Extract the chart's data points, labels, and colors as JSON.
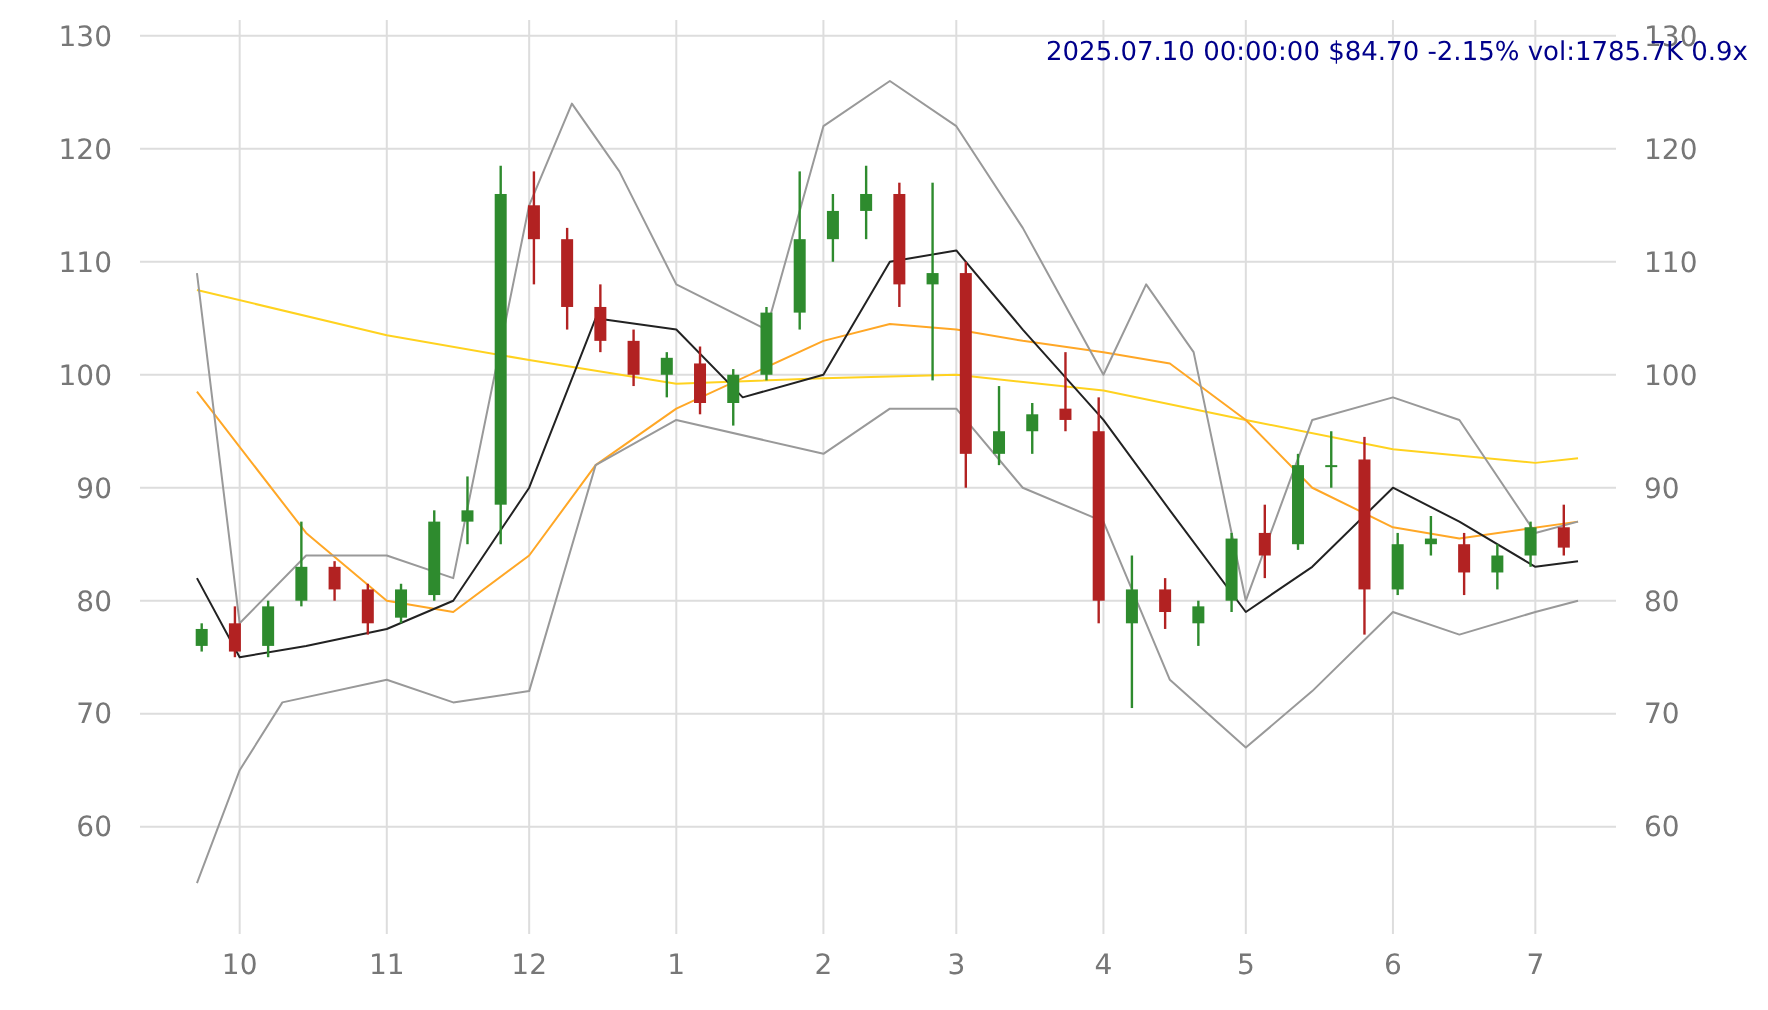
{
  "chart_data": {
    "type": "candlestick",
    "title": "2025.07.10 00:00:00 $84.70 -2.15% vol:1785.7K 0.9x",
    "x": [
      "2024-09-23",
      "2024-09-30",
      "2024-10-07",
      "2024-10-14",
      "2024-10-21",
      "2024-10-28",
      "2024-11-04",
      "2024-11-11",
      "2024-11-18",
      "2024-11-25",
      "2024-12-02",
      "2024-12-09",
      "2024-12-16",
      "2024-12-23",
      "2024-12-30",
      "2025-01-06",
      "2025-01-13",
      "2025-01-20",
      "2025-01-27",
      "2025-02-03",
      "2025-02-10",
      "2025-02-17",
      "2025-02-24",
      "2025-03-03",
      "2025-03-10",
      "2025-03-17",
      "2025-03-24",
      "2025-03-31",
      "2025-04-07",
      "2025-04-14",
      "2025-04-21",
      "2025-04-28",
      "2025-05-05",
      "2025-05-12",
      "2025-05-19",
      "2025-05-26",
      "2025-06-02",
      "2025-06-09",
      "2025-06-16",
      "2025-06-23",
      "2025-06-30",
      "2025-07-07"
    ],
    "ohlc": [
      [
        76,
        78,
        75.5,
        77.5
      ],
      [
        78,
        79.5,
        75,
        75.5
      ],
      [
        76,
        80,
        75,
        79.5
      ],
      [
        80,
        87,
        79.5,
        83
      ],
      [
        83,
        83.5,
        80,
        81
      ],
      [
        81,
        81.5,
        77,
        78
      ],
      [
        78.5,
        81.5,
        78,
        81
      ],
      [
        80.5,
        88,
        80,
        87
      ],
      [
        87,
        91,
        85,
        88
      ],
      [
        88.5,
        118.5,
        85,
        116
      ],
      [
        115,
        118,
        108,
        112
      ],
      [
        112,
        113,
        104,
        106
      ],
      [
        106,
        108,
        102,
        103
      ],
      [
        103,
        104,
        99,
        100
      ],
      [
        100,
        102,
        98,
        101.5
      ],
      [
        101,
        102.5,
        96.5,
        97.5
      ],
      [
        97.5,
        100.5,
        95.5,
        100
      ],
      [
        100,
        106,
        99.5,
        105.5
      ],
      [
        105.5,
        118,
        104,
        112
      ],
      [
        112,
        116,
        110,
        114.5
      ],
      [
        114.5,
        118.5,
        112,
        116
      ],
      [
        116,
        117,
        106,
        108
      ],
      [
        108,
        117,
        99.5,
        109
      ],
      [
        109,
        110,
        90,
        93
      ],
      [
        93,
        99,
        92,
        95
      ],
      [
        95,
        97.5,
        93,
        96.5
      ],
      [
        97,
        102,
        95,
        96
      ],
      [
        95,
        98,
        78,
        80
      ],
      [
        78,
        84,
        70.5,
        81
      ],
      [
        81,
        82,
        77.5,
        79
      ],
      [
        78,
        80,
        76,
        79.5
      ],
      [
        80,
        86,
        79,
        85.5
      ],
      [
        86,
        88.5,
        82,
        84
      ],
      [
        85,
        93,
        84.5,
        92
      ],
      [
        92,
        95,
        90,
        92
      ],
      [
        92.5,
        94.5,
        77,
        81
      ],
      [
        81,
        86,
        80.5,
        85
      ],
      [
        85,
        87.5,
        84,
        85.5
      ],
      [
        85,
        86,
        80.5,
        82.5
      ],
      [
        82.5,
        85,
        81,
        84
      ],
      [
        84,
        87,
        83,
        86.5
      ],
      [
        86.5,
        88.5,
        84,
        84.7
      ]
    ],
    "series": [
      {
        "type": "line",
        "color": "#ffd21f",
        "x": [
          "2024-09-22",
          "2024-11-01",
          "2024-12-01",
          "2025-01-01",
          "2025-02-01",
          "2025-03-01",
          "2025-04-01",
          "2025-05-01",
          "2025-06-01",
          "2025-07-01",
          "2025-07-10"
        ],
        "values": [
          107.5,
          103.5,
          101.3,
          99.2,
          99.7,
          100,
          98.6,
          96,
          93.4,
          92.2,
          92.6
        ]
      },
      {
        "type": "line",
        "color": "#ffa726",
        "x": [
          "2024-09-22",
          "2024-10-15",
          "2024-11-01",
          "2024-11-15",
          "2024-12-01",
          "2024-12-15",
          "2025-01-01",
          "2025-02-01",
          "2025-02-15",
          "2025-03-01",
          "2025-03-15",
          "2025-04-01",
          "2025-04-15",
          "2025-05-01",
          "2025-05-15",
          "2025-06-01",
          "2025-06-15",
          "2025-07-10"
        ],
        "values": [
          98.5,
          86,
          80,
          79,
          84,
          92,
          97,
          103,
          104.5,
          104,
          103,
          102,
          101,
          96,
          90,
          86.5,
          85.5,
          87
        ]
      },
      {
        "type": "line",
        "color": "#222222",
        "x": [
          "2024-09-22",
          "2024-10-01",
          "2024-10-15",
          "2024-11-01",
          "2024-11-15",
          "2024-12-01",
          "2024-12-15",
          "2025-01-01",
          "2025-01-15",
          "2025-02-01",
          "2025-02-15",
          "2025-03-01",
          "2025-03-15",
          "2025-04-01",
          "2025-04-15",
          "2025-05-01",
          "2025-05-15",
          "2025-06-01",
          "2025-06-15",
          "2025-07-01",
          "2025-07-10"
        ],
        "values": [
          82,
          75,
          76,
          77.5,
          80,
          90,
          105,
          104,
          98,
          100,
          110,
          111,
          104,
          96,
          88,
          79,
          83,
          90,
          87,
          83,
          83.5
        ]
      },
      {
        "type": "line",
        "color": "#999999",
        "x": [
          "2024-09-22",
          "2024-10-01",
          "2024-10-15",
          "2024-11-01",
          "2024-11-15",
          "2024-12-01",
          "2024-12-10",
          "2024-12-20",
          "2025-01-01",
          "2025-01-20",
          "2025-02-01",
          "2025-02-15",
          "2025-03-01",
          "2025-03-15",
          "2025-04-01",
          "2025-04-10",
          "2025-04-20",
          "2025-05-01",
          "2025-05-15",
          "2025-06-01",
          "2025-06-15",
          "2025-07-01",
          "2025-07-10"
        ],
        "values": [
          109,
          78,
          84,
          84,
          82,
          115,
          124,
          118,
          108,
          104,
          122,
          126,
          122,
          113,
          100,
          108,
          102,
          80,
          96,
          98,
          96,
          86,
          87
        ]
      },
      {
        "type": "line",
        "color": "#999999",
        "x": [
          "2024-09-22",
          "2024-10-01",
          "2024-10-10",
          "2024-11-01",
          "2024-11-15",
          "2024-12-01",
          "2024-12-15",
          "2025-01-01",
          "2025-02-01",
          "2025-02-15",
          "2025-03-01",
          "2025-03-15",
          "2025-04-01",
          "2025-04-15",
          "2025-05-01",
          "2025-05-15",
          "2025-06-01",
          "2025-06-15",
          "2025-07-01",
          "2025-07-10"
        ],
        "values": [
          55,
          65,
          71,
          73,
          71,
          72,
          92,
          96,
          93,
          97,
          97,
          90,
          87,
          73,
          67,
          72,
          79,
          77,
          79,
          80
        ]
      }
    ],
    "xlim": [
      "2024-09-10",
      "2025-07-18"
    ],
    "xticks": [
      {
        "value": "2024-10-01",
        "label": "10"
      },
      {
        "value": "2024-11-01",
        "label": "11"
      },
      {
        "value": "2024-12-01",
        "label": "12"
      },
      {
        "value": "2025-01-01",
        "label": "1"
      },
      {
        "value": "2025-02-01",
        "label": "2"
      },
      {
        "value": "2025-03-01",
        "label": "3"
      },
      {
        "value": "2025-04-01",
        "label": "4"
      },
      {
        "value": "2025-05-01",
        "label": "5"
      },
      {
        "value": "2025-06-01",
        "label": "6"
      },
      {
        "value": "2025-07-01",
        "label": "7"
      }
    ],
    "ylim": [
      50.5,
      131.4
    ],
    "yticks": [
      60,
      70,
      80,
      90,
      100,
      110,
      120,
      130
    ],
    "y2lim": [
      50.5,
      131.4
    ],
    "y2ticks": [
      60,
      70,
      80,
      90,
      100,
      110,
      120,
      130
    ],
    "grid": true
  }
}
